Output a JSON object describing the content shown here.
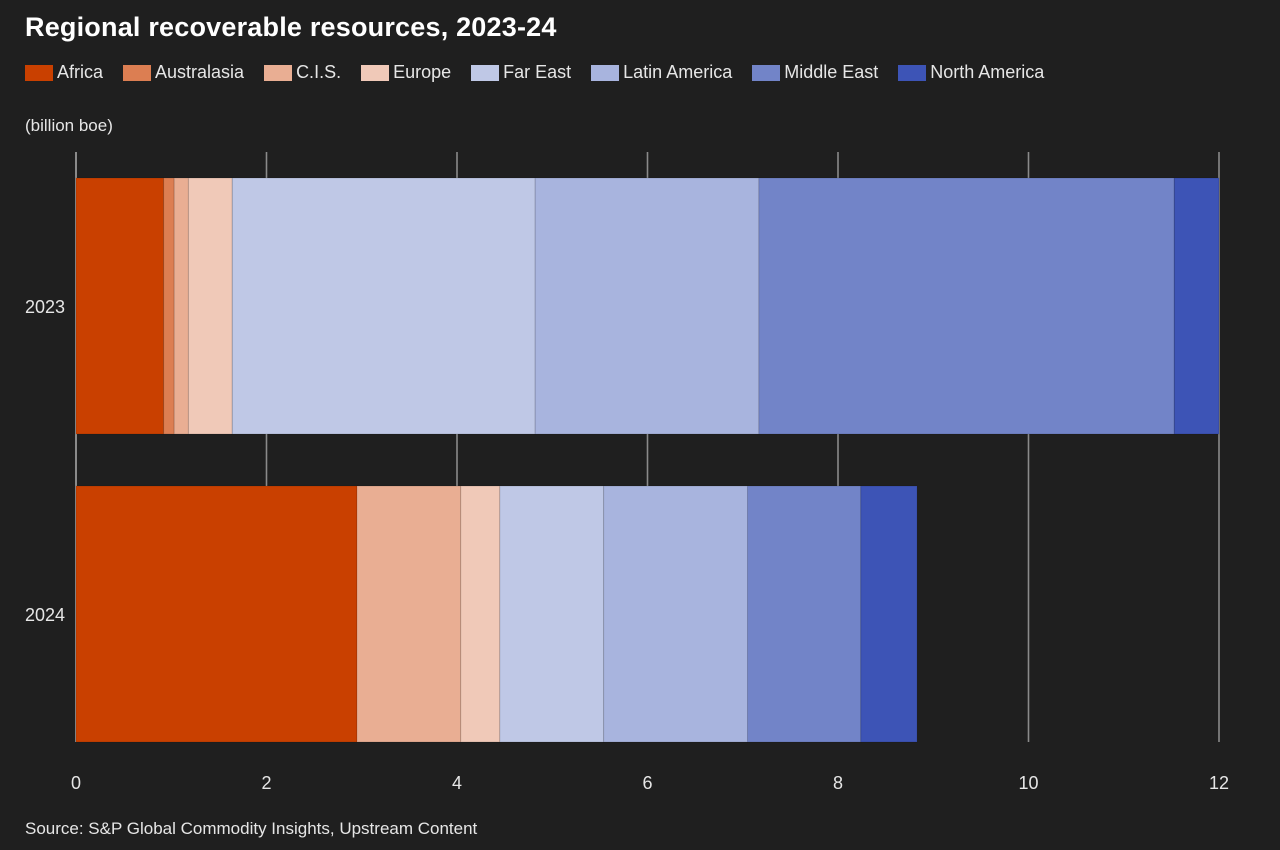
{
  "title": "Regional recoverable resources, 2023-24",
  "unit_label": "(billion boe)",
  "source": "Source: S&P Global Commodity Insights, Upstream Content",
  "colors": {
    "background": "#1f1f1f",
    "grid": "#8a8a8a",
    "text": "#e6e6e6"
  },
  "chart_data": {
    "type": "bar",
    "orientation": "horizontal",
    "stacked": true,
    "categories": [
      "2023",
      "2024"
    ],
    "series": [
      {
        "name": "Africa",
        "color": "#c94000",
        "values": [
          0.92,
          2.95
        ]
      },
      {
        "name": "Australasia",
        "color": "#dc7e52",
        "values": [
          0.11,
          0
        ]
      },
      {
        "name": "C.I.S.",
        "color": "#e9ae93",
        "values": [
          0.15,
          1.09
        ]
      },
      {
        "name": "Europe",
        "color": "#f0c9b8",
        "values": [
          0.46,
          0.41
        ]
      },
      {
        "name": "Far East",
        "color": "#bfc8e6",
        "values": [
          3.18,
          1.09
        ]
      },
      {
        "name": "Latin America",
        "color": "#a8b4de",
        "values": [
          2.35,
          1.51
        ]
      },
      {
        "name": "Middle East",
        "color": "#7284c8",
        "values": [
          4.36,
          1.19
        ]
      },
      {
        "name": "North America",
        "color": "#3d54b6",
        "values": [
          0.47,
          0.59
        ]
      }
    ],
    "xlim": [
      0,
      12
    ],
    "xticks": [
      "0",
      "2",
      "4",
      "6",
      "8",
      "10",
      "12"
    ],
    "xtick_values": [
      0,
      2,
      4,
      6,
      8,
      10,
      12
    ],
    "grid": true,
    "legend_position": "top"
  }
}
